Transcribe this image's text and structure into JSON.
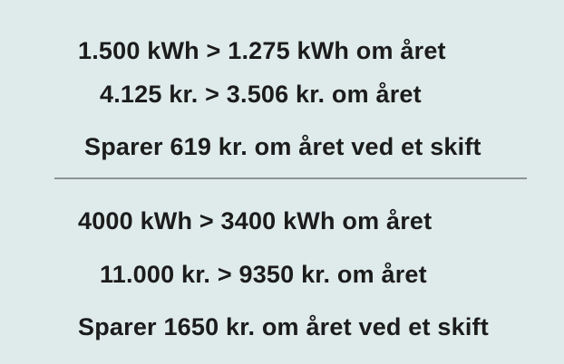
{
  "colors": {
    "background": "#deebea",
    "text": "#1c1c1c",
    "divider": "#8d9493"
  },
  "group1": {
    "energy": "1.500 kWh > 1.275 kWh om året",
    "cost": "4.125 kr. > 3.506 kr. om året",
    "savings": "Sparer 619 kr. om året ved et skift"
  },
  "group2": {
    "energy": "4000 kWh > 3400 kWh om året",
    "cost": "11.000 kr. > 9350 kr. om året",
    "savings": "Sparer 1650 kr. om året ved et skift"
  }
}
